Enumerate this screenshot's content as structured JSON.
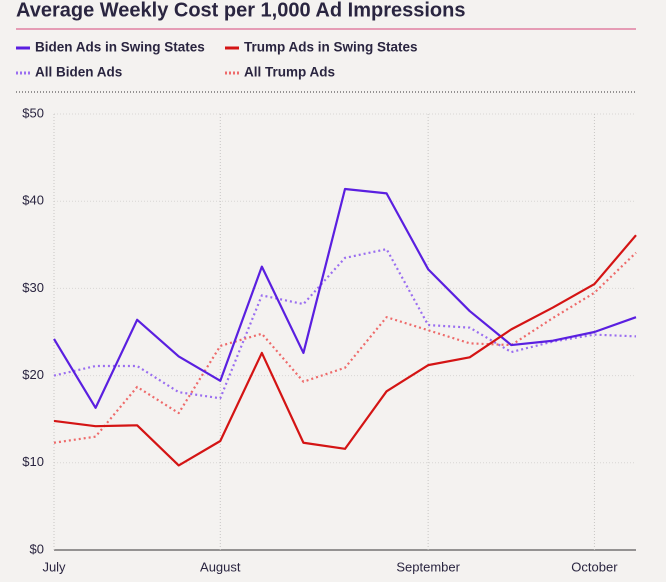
{
  "chart_data": {
    "type": "line",
    "title": "Average Weekly Cost per 1,000 Ad Impressions",
    "categories": [
      "July",
      null,
      null,
      null,
      "August",
      null,
      null,
      null,
      null,
      "September",
      null,
      null,
      null,
      "October",
      null
    ],
    "series": [
      {
        "name": "Biden Ads in Swing States",
        "color": "#5a1fe0",
        "style": "solid",
        "values": [
          24.2,
          16.3,
          26.4,
          22.2,
          19.4,
          32.5,
          22.6,
          41.4,
          40.9,
          32.2,
          27.4,
          23.5,
          24.0,
          25.0,
          26.7
        ]
      },
      {
        "name": "Trump Ads in Swing States",
        "color": "#d41414",
        "style": "solid",
        "values": [
          14.8,
          14.2,
          14.3,
          9.7,
          12.5,
          22.6,
          12.3,
          11.6,
          18.2,
          21.2,
          22.1,
          25.3,
          27.8,
          30.5,
          36.1
        ]
      },
      {
        "name": "All Biden Ads",
        "color": "#9a6ef0",
        "style": "dotted",
        "values": [
          20.0,
          21.1,
          21.1,
          18.1,
          17.4,
          29.2,
          28.2,
          33.5,
          34.5,
          25.8,
          25.5,
          22.7,
          23.9,
          24.7,
          24.5
        ]
      },
      {
        "name": "All Trump Ads",
        "color": "#ee6a6a",
        "style": "dotted",
        "values": [
          12.3,
          13.0,
          18.7,
          15.7,
          23.4,
          24.8,
          19.3,
          20.9,
          26.7,
          25.2,
          23.7,
          23.5,
          26.6,
          29.5,
          34.1
        ]
      }
    ],
    "ylim": [
      0,
      50
    ],
    "yticks": [
      {
        "value": 0,
        "label": "$0"
      },
      {
        "value": 10,
        "label": "$10"
      },
      {
        "value": 20,
        "label": "$20"
      },
      {
        "value": 30,
        "label": "$30"
      },
      {
        "value": 40,
        "label": "$40"
      },
      {
        "value": 50,
        "label": "$50"
      }
    ],
    "grid": true
  }
}
